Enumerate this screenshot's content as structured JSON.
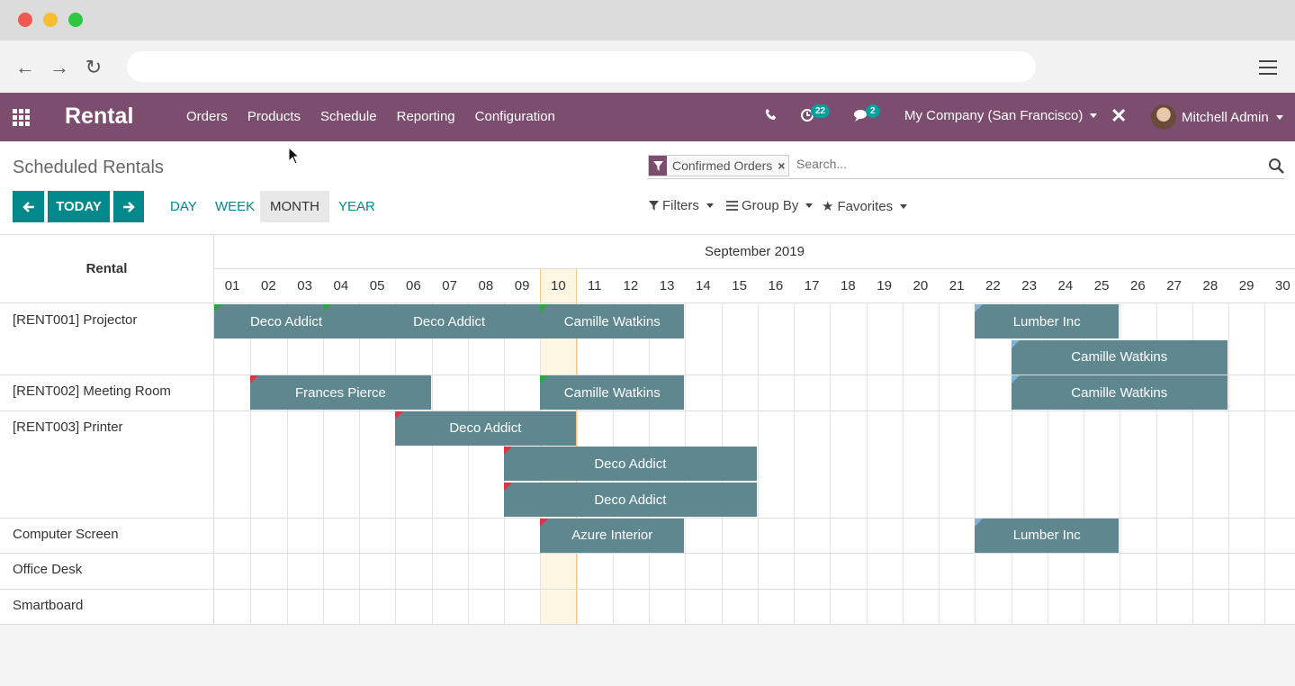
{
  "app": {
    "brand": "Rental"
  },
  "menu": [
    "Orders",
    "Products",
    "Schedule",
    "Reporting",
    "Configuration"
  ],
  "systray": {
    "activities_count": "22",
    "messages_count": "2",
    "company": "My Company (San Francisco)",
    "user": "Mitchell Admin"
  },
  "page": {
    "title": "Scheduled Rentals"
  },
  "search": {
    "facet": "Confirmed Orders",
    "placeholder": "Search..."
  },
  "controls": {
    "today": "TODAY",
    "scales": [
      "DAY",
      "WEEK",
      "MONTH",
      "YEAR"
    ],
    "active_scale": "MONTH",
    "filters": "Filters",
    "group_by": "Group By",
    "favorites": "Favorites"
  },
  "gantt": {
    "row_header": "Rental",
    "month": "September 2019",
    "days": [
      "01",
      "02",
      "03",
      "04",
      "05",
      "06",
      "07",
      "08",
      "09",
      "10",
      "11",
      "12",
      "13",
      "14",
      "15",
      "16",
      "17",
      "18",
      "19",
      "20",
      "21",
      "22",
      "23",
      "24",
      "25",
      "26",
      "27",
      "28",
      "29",
      "30"
    ],
    "today_day": "10",
    "rows": [
      {
        "label": "[RENT001] Projector",
        "lines": 2
      },
      {
        "label": "[RENT002] Meeting Room",
        "lines": 1
      },
      {
        "label": "[RENT003] Printer",
        "lines": 3
      },
      {
        "label": "Computer Screen",
        "lines": 1
      },
      {
        "label": "Office Desk",
        "lines": 1
      },
      {
        "label": "Smartboard",
        "lines": 1
      }
    ],
    "pills": [
      {
        "name": "Deco Addict",
        "row": 0,
        "line": 0,
        "start": 1,
        "end": 4,
        "status": "green"
      },
      {
        "name": "Deco Addict",
        "row": 0,
        "line": 0,
        "start": 4,
        "end": 10,
        "status": "green"
      },
      {
        "name": "Camille Watkins",
        "row": 0,
        "line": 0,
        "start": 10,
        "end": 13,
        "status": "green"
      },
      {
        "name": "Lumber Inc",
        "row": 0,
        "line": 0,
        "start": 22,
        "end": 25,
        "status": "blue"
      },
      {
        "name": "Camille Watkins",
        "row": 0,
        "line": 1,
        "start": 23,
        "end": 28,
        "status": "blue"
      },
      {
        "name": "Frances Pierce",
        "row": 1,
        "line": 0,
        "start": 2,
        "end": 6,
        "status": "red"
      },
      {
        "name": "Camille Watkins",
        "row": 1,
        "line": 0,
        "start": 10,
        "end": 13,
        "status": "green"
      },
      {
        "name": "Camille Watkins",
        "row": 1,
        "line": 0,
        "start": 23,
        "end": 28,
        "status": "blue"
      },
      {
        "name": "Deco Addict",
        "row": 2,
        "line": 0,
        "start": 6,
        "end": 10,
        "status": "red"
      },
      {
        "name": "Deco Addict",
        "row": 2,
        "line": 1,
        "start": 9,
        "end": 15,
        "status": "red"
      },
      {
        "name": "Deco Addict",
        "row": 2,
        "line": 2,
        "start": 9,
        "end": 15,
        "status": "red"
      },
      {
        "name": "Azure Interior",
        "row": 3,
        "line": 0,
        "start": 10,
        "end": 13,
        "status": "red"
      },
      {
        "name": "Lumber Inc",
        "row": 3,
        "line": 0,
        "start": 22,
        "end": 25,
        "status": "blue"
      }
    ],
    "status_colors": {
      "green": "#28a745",
      "red": "#dc3545",
      "blue": "#7fb2d8"
    }
  }
}
